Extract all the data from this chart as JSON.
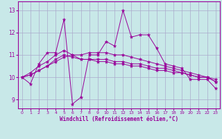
{
  "xlabel": "Windchill (Refroidissement éolien,°C)",
  "background_color": "#c8e8e8",
  "grid_color": "#aaaacc",
  "line_color": "#990099",
  "ylim": [
    8.6,
    13.4
  ],
  "xlim": [
    -0.5,
    23.5
  ],
  "yticks": [
    9,
    10,
    11,
    12,
    13
  ],
  "xticks": [
    0,
    1,
    2,
    3,
    4,
    5,
    6,
    7,
    8,
    9,
    10,
    11,
    12,
    13,
    14,
    15,
    16,
    17,
    18,
    19,
    20,
    21,
    22,
    23
  ],
  "series": [
    [
      10.0,
      9.7,
      10.6,
      11.1,
      11.1,
      12.6,
      8.8,
      9.1,
      11.0,
      11.0,
      11.6,
      11.4,
      13.0,
      11.8,
      11.9,
      11.9,
      11.3,
      10.6,
      10.5,
      10.4,
      9.9,
      9.9,
      9.9,
      9.5
    ],
    [
      10.0,
      10.1,
      10.3,
      10.5,
      10.7,
      10.9,
      11.0,
      11.0,
      11.1,
      11.1,
      11.1,
      11.0,
      11.0,
      10.9,
      10.8,
      10.7,
      10.6,
      10.5,
      10.4,
      10.3,
      10.2,
      10.1,
      10.0,
      9.9
    ],
    [
      10.0,
      10.2,
      10.5,
      10.7,
      11.0,
      11.2,
      11.0,
      10.8,
      10.8,
      10.8,
      10.8,
      10.7,
      10.7,
      10.6,
      10.6,
      10.5,
      10.4,
      10.4,
      10.3,
      10.2,
      10.1,
      10.0,
      10.0,
      9.8
    ],
    [
      10.0,
      10.1,
      10.3,
      10.5,
      10.8,
      11.0,
      10.9,
      10.8,
      10.8,
      10.7,
      10.7,
      10.6,
      10.6,
      10.5,
      10.5,
      10.4,
      10.3,
      10.3,
      10.2,
      10.2,
      10.1,
      10.0,
      10.0,
      9.8
    ]
  ],
  "xtick_labels": [
    "0",
    "1",
    "2",
    "3",
    "4",
    "5",
    "6",
    "7",
    "8",
    "9",
    "10",
    "11",
    "12",
    "13",
    "14",
    "15",
    "16",
    "17",
    "18",
    "19",
    "20",
    "21",
    "22",
    "23"
  ]
}
